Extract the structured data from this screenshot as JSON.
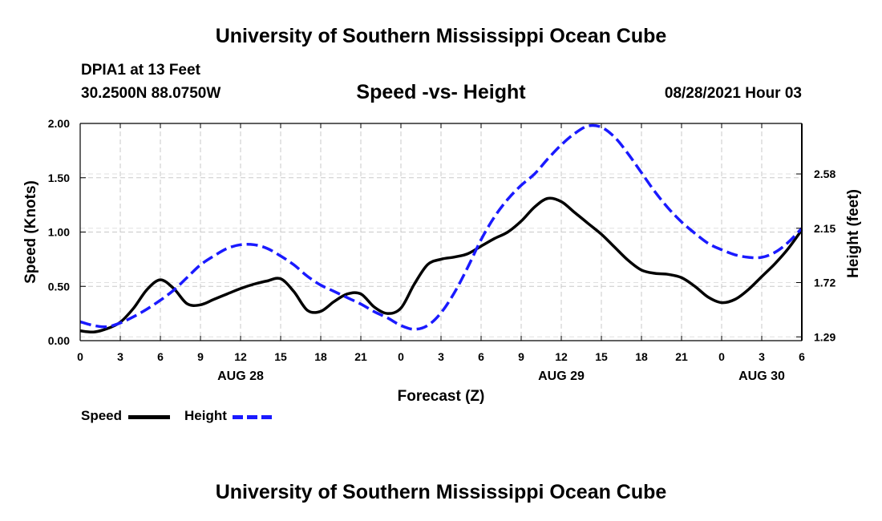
{
  "header": {
    "top_title": "University of Southern Mississippi Ocean Cube",
    "bottom_title": "University of Southern Mississippi Ocean Cube",
    "station": "DPIA1 at 13 Feet",
    "coords": "30.2500N  88.0750W",
    "chart_title": "Speed -vs- Height",
    "datetime": "08/28/2021 Hour 03"
  },
  "legend": {
    "speed_label": "Speed",
    "height_label": "Height"
  },
  "colors": {
    "speed": "#000000",
    "height": "#1a1aff",
    "grid": "#c8c8c8"
  },
  "chart_data": {
    "type": "line",
    "title": "Speed -vs- Height",
    "xlabel": "Forecast (Z)",
    "ylabel": "Speed (Knots)",
    "ylabel_right": "Height (feet)",
    "grid": true,
    "x_tick_labels": [
      "0",
      "3",
      "6",
      "9",
      "12",
      "15",
      "18",
      "21",
      "0",
      "3",
      "6",
      "9",
      "12",
      "15",
      "18",
      "21",
      "0",
      "3",
      "6"
    ],
    "date_labels": [
      {
        "label": "AUG 28",
        "hour": 12
      },
      {
        "label": "AUG 29",
        "hour": 36
      },
      {
        "label": "AUG 30",
        "hour": 51
      }
    ],
    "xlim": [
      0,
      54
    ],
    "ylim": [
      0,
      2
    ],
    "y_ticks": [
      "0.00",
      "0.50",
      "1.00",
      "1.50",
      "2.00"
    ],
    "y2lim": [
      1.26,
      2.98
    ],
    "y2_ticks": [
      1.29,
      1.72,
      2.15,
      2.58
    ],
    "y2_tick_labels": [
      "1.29",
      "1.72",
      "2.15",
      "2.58"
    ],
    "series": [
      {
        "name": "Speed",
        "axis": "left",
        "x": [
          0,
          1,
          2,
          3,
          4,
          5,
          6,
          7,
          8,
          9,
          10,
          11,
          12,
          13,
          14,
          15,
          16,
          17,
          18,
          19,
          20,
          21,
          22,
          23,
          24,
          25,
          26,
          27,
          28,
          29,
          30,
          31,
          32,
          33,
          34,
          35,
          36,
          37,
          38,
          39,
          40,
          41,
          42,
          43,
          44,
          45,
          46,
          47,
          48,
          49,
          50,
          51,
          52,
          53,
          54
        ],
        "values": [
          0.09,
          0.08,
          0.11,
          0.17,
          0.3,
          0.47,
          0.56,
          0.48,
          0.34,
          0.33,
          0.38,
          0.43,
          0.48,
          0.52,
          0.55,
          0.57,
          0.45,
          0.28,
          0.27,
          0.36,
          0.43,
          0.43,
          0.31,
          0.25,
          0.3,
          0.52,
          0.7,
          0.75,
          0.77,
          0.8,
          0.87,
          0.94,
          1.0,
          1.1,
          1.23,
          1.31,
          1.28,
          1.18,
          1.08,
          0.98,
          0.86,
          0.74,
          0.65,
          0.62,
          0.61,
          0.58,
          0.5,
          0.4,
          0.35,
          0.38,
          0.47,
          0.59,
          0.71,
          0.85,
          1.02
        ]
      },
      {
        "name": "Height",
        "axis": "right",
        "x": [
          0,
          1,
          2,
          3,
          4,
          5,
          6,
          7,
          8,
          9,
          10,
          11,
          12,
          13,
          14,
          15,
          16,
          17,
          18,
          19,
          20,
          21,
          22,
          23,
          24,
          25,
          26,
          27,
          28,
          29,
          30,
          31,
          32,
          33,
          34,
          35,
          36,
          37,
          38,
          39,
          40,
          41,
          42,
          43,
          44,
          45,
          46,
          47,
          48,
          49,
          50,
          51,
          52,
          53,
          54
        ],
        "values": [
          1.41,
          1.38,
          1.37,
          1.4,
          1.45,
          1.51,
          1.58,
          1.66,
          1.76,
          1.86,
          1.93,
          1.99,
          2.02,
          2.02,
          1.99,
          1.93,
          1.86,
          1.77,
          1.7,
          1.65,
          1.6,
          1.55,
          1.49,
          1.44,
          1.38,
          1.35,
          1.38,
          1.48,
          1.64,
          1.84,
          2.06,
          2.24,
          2.38,
          2.49,
          2.58,
          2.7,
          2.81,
          2.9,
          2.96,
          2.95,
          2.87,
          2.74,
          2.59,
          2.44,
          2.31,
          2.2,
          2.11,
          2.03,
          1.98,
          1.94,
          1.92,
          1.92,
          1.96,
          2.04,
          2.15
        ]
      }
    ]
  }
}
